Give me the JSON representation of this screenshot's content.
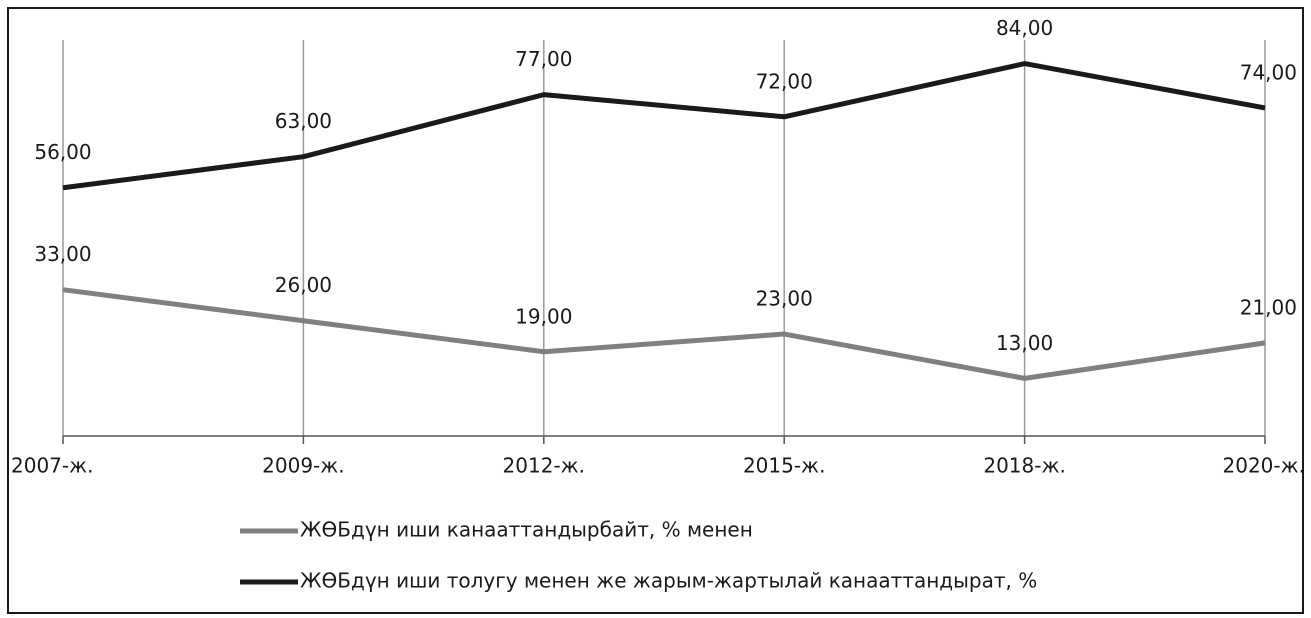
{
  "chart_data": {
    "type": "line",
    "categories": [
      "2007-ж.",
      "2009-ж.",
      "2012-ж.",
      "2015-ж.",
      "2018-ж.",
      "2020-ж."
    ],
    "series": [
      {
        "name": "ЖӨБдүн иши канааттандырбайт, % менен",
        "color": "#808080",
        "values": [
          33,
          26,
          19,
          23,
          13,
          21
        ],
        "value_labels": [
          "33,00",
          "26,00",
          "19,00",
          "23,00",
          "13,00",
          "21,00"
        ]
      },
      {
        "name": "ЖӨБдүн иши толугу менен же жарым-жартылай канааттандырат, %",
        "color": "#1a1a1a",
        "values": [
          56,
          63,
          77,
          72,
          84,
          74
        ],
        "value_labels": [
          "56,00",
          "63,00",
          "77,00",
          "72,00",
          "84,00",
          "74,00"
        ]
      }
    ],
    "ylim": [
      0,
      90
    ],
    "grid": true
  }
}
